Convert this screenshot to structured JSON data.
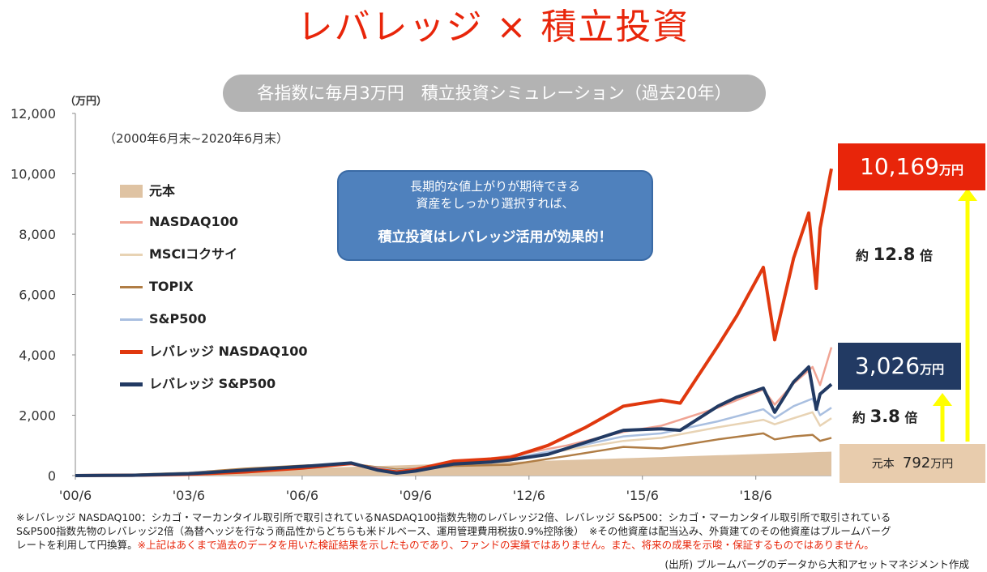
{
  "header": {
    "title": "レバレッジ × 積立投資",
    "title_color": "#e8250a",
    "subtitle": "各指数に毎月3万円　積立投資シミュレーション（過去20年）",
    "period": "（2000年6月末~2020年6月末）",
    "unit": "（万円）"
  },
  "callout": {
    "line1": "長期的な値上がりが期待できる",
    "line2": "資産をしっかり選択すれば、",
    "line3": "積立投資はレバレッジ活用が効果的！"
  },
  "annotations": {
    "lev_nasdaq_value": "10,169",
    "lev_sp_value": "3,026",
    "unit_label": "万円",
    "principal_label": "元本",
    "principal_value": "792",
    "ratio_nasdaq_prefix": "約",
    "ratio_nasdaq_value": "12.8",
    "ratio_sp_prefix": "約",
    "ratio_sp_value": "3.8",
    "ratio_suffix": "倍"
  },
  "notes": {
    "line1": "※レバレッジ NASDAQ100：シカゴ・マーカンタイル取引所で取引されているNASDAQ100指数先物のレバレッジ2倍、レバレッジ S&P500：シカゴ・マーカンタイル取引所で取引されている",
    "line2": "S&P500指数先物のレバレッジ2倍（為替ヘッジを行なう商品性からどちらも米ドルベース、運用管理費用税抜0.9%控除後）　※その他資産は配当込み、外貨建てのその他資産はブルームバーグ",
    "line3_black": "レートを利用して円換算。",
    "line3_red": "※上記はあくまで過去のデータを用いた検証結果を示したものであり、ファンドの実績ではありません。また、将来の成果を示唆・保証するものではありません。",
    "source": "(出所) ブルームバーグのデータから大和アセットマネジメント作成"
  },
  "chart_data": {
    "type": "line",
    "ylim": [
      0,
      12000
    ],
    "xlim": [
      2000.5,
      2020.5
    ],
    "y_ticks": [
      "0",
      "2,000",
      "4,000",
      "6,000",
      "8,000",
      "10,000",
      "12,000"
    ],
    "x_ticks": [
      "'00/6",
      "'03/6",
      "'06/6",
      "'09/6",
      "'12/6",
      "'15/6",
      "'18/6"
    ],
    "x_tick_years": [
      2000.5,
      2003.5,
      2006.5,
      2009.5,
      2012.5,
      2015.5,
      2018.5
    ],
    "series": [
      {
        "name": "元本",
        "style": "area",
        "color": "#dfc3a3",
        "x": [
          2000.5,
          2020.5
        ],
        "values": [
          0,
          792
        ]
      },
      {
        "name": "NASDAQ100",
        "color": "#f0a494",
        "x": [
          2000.5,
          2002.0,
          2003.5,
          2005.0,
          2006.5,
          2007.8,
          2009.0,
          2009.5,
          2010.5,
          2012.0,
          2013.5,
          2015.0,
          2016.0,
          2017.5,
          2018.7,
          2019.0,
          2019.5,
          2020.0,
          2020.2,
          2020.5
        ],
        "values": [
          0,
          20,
          80,
          160,
          280,
          380,
          150,
          220,
          420,
          650,
          1000,
          1450,
          1650,
          2250,
          2850,
          2350,
          3050,
          3600,
          3000,
          4250
        ]
      },
      {
        "name": "MSCIコクサイ",
        "color": "#e8d3b4",
        "x": [
          2000.5,
          2002.0,
          2003.5,
          2005.0,
          2006.5,
          2007.8,
          2009.0,
          2009.5,
          2010.5,
          2012.0,
          2013.5,
          2015.0,
          2016.0,
          2017.5,
          2018.7,
          2019.0,
          2019.5,
          2020.0,
          2020.2,
          2020.5
        ],
        "values": [
          0,
          30,
          100,
          200,
          330,
          400,
          180,
          230,
          380,
          520,
          850,
          1150,
          1250,
          1600,
          1850,
          1700,
          1900,
          2100,
          1650,
          1900
        ]
      },
      {
        "name": "TOPIX",
        "color": "#b07d45",
        "x": [
          2000.5,
          2002.0,
          2003.5,
          2005.0,
          2006.5,
          2007.8,
          2009.0,
          2009.5,
          2010.5,
          2012.0,
          2013.5,
          2015.0,
          2016.0,
          2017.5,
          2018.7,
          2019.0,
          2019.5,
          2020.0,
          2020.2,
          2020.5
        ],
        "values": [
          0,
          30,
          90,
          230,
          330,
          380,
          200,
          230,
          320,
          360,
          650,
          950,
          900,
          1200,
          1400,
          1200,
          1300,
          1350,
          1150,
          1250
        ]
      },
      {
        "name": "S&P500",
        "color": "#a9bfe0",
        "x": [
          2000.5,
          2002.0,
          2003.5,
          2005.0,
          2006.5,
          2007.8,
          2009.0,
          2009.5,
          2010.5,
          2012.0,
          2013.5,
          2015.0,
          2016.0,
          2017.5,
          2018.7,
          2019.0,
          2019.5,
          2020.0,
          2020.2,
          2020.5
        ],
        "values": [
          0,
          20,
          90,
          190,
          300,
          380,
          160,
          230,
          380,
          560,
          900,
          1300,
          1400,
          1800,
          2200,
          1900,
          2300,
          2550,
          2000,
          2250
        ]
      },
      {
        "name": "レバレッジ NASDAQ100",
        "color": "#e0380e",
        "x": [
          2000.5,
          2002.0,
          2003.5,
          2005.0,
          2006.5,
          2007.8,
          2008.5,
          2009.0,
          2009.5,
          2010.5,
          2011.5,
          2012.0,
          2013.0,
          2014.0,
          2015.0,
          2016.0,
          2016.5,
          2017.5,
          2018.0,
          2018.7,
          2019.0,
          2019.5,
          2019.9,
          2020.1,
          2020.2,
          2020.5
        ],
        "values": [
          0,
          10,
          40,
          120,
          250,
          400,
          200,
          120,
          200,
          480,
          550,
          600,
          1000,
          1600,
          2300,
          2500,
          2400,
          4300,
          5300,
          6900,
          4500,
          7200,
          8700,
          6200,
          8200,
          10169
        ]
      },
      {
        "name": "レバレッジ S&P500",
        "color": "#223a63",
        "x": [
          2000.5,
          2002.0,
          2003.5,
          2005.0,
          2006.5,
          2007.8,
          2008.5,
          2009.0,
          2009.5,
          2010.5,
          2011.5,
          2012.0,
          2013.0,
          2014.0,
          2015.0,
          2016.0,
          2016.5,
          2017.5,
          2018.0,
          2018.7,
          2019.0,
          2019.5,
          2019.9,
          2020.1,
          2020.2,
          2020.5
        ],
        "values": [
          0,
          10,
          60,
          180,
          300,
          420,
          180,
          80,
          150,
          380,
          450,
          520,
          700,
          1100,
          1500,
          1550,
          1500,
          2300,
          2600,
          2900,
          2100,
          3100,
          3600,
          2200,
          2700,
          3026
        ]
      }
    ]
  }
}
